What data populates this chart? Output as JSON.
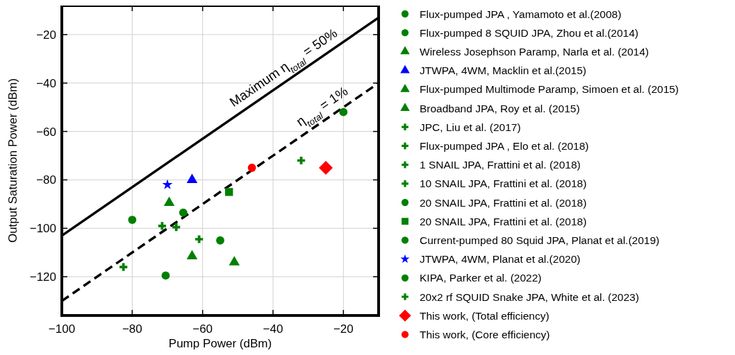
{
  "chart_data": {
    "type": "scatter",
    "xlabel": "Pump Power (dBm)",
    "ylabel": "Output Saturation Power (dBm)",
    "xlim": [
      -100,
      -10
    ],
    "ylim": [
      -136,
      -8
    ],
    "xticks": [
      -100,
      -80,
      -60,
      -40,
      -20
    ],
    "yticks": [
      -120,
      -100,
      -80,
      -60,
      -40,
      -20
    ],
    "grid": true,
    "legend": "right",
    "series": [
      {
        "type": "line",
        "x": [
          -100,
          -10
        ],
        "values": [
          -103,
          -13
        ],
        "color": "#000000",
        "line_style": "solid"
      },
      {
        "type": "line",
        "x": [
          -100,
          -10
        ],
        "values": [
          -130,
          -40
        ],
        "color": "#000000",
        "line_style": "dashed"
      },
      {
        "name": "Flux-pumped JPA , Yamamoto et al.(2008)",
        "x": [
          -70.5
        ],
        "values": [
          -119.5
        ],
        "color": "#008000",
        "marker": "circle"
      },
      {
        "name": "Flux-pumped 8 SQUID JPA, Zhou et al.(2014)",
        "x": [
          -55
        ],
        "values": [
          -105
        ],
        "color": "#008000",
        "marker": "circle"
      },
      {
        "name": "Wireless Josephson Paramp, Narla et al. (2014)",
        "x": [
          -63
        ],
        "values": [
          -111.5
        ],
        "color": "#008000",
        "marker": "triangle"
      },
      {
        "name": "JTWPA, 4WM, Macklin et al.(2015)",
        "x": [
          -63
        ],
        "values": [
          -80
        ],
        "color": "#0000ff",
        "marker": "triangle"
      },
      {
        "name": "Flux-pumped Multimode Paramp, Simoen et al. (2015)",
        "x": [
          -51
        ],
        "values": [
          -114
        ],
        "color": "#008000",
        "marker": "triangle"
      },
      {
        "name": "Broadband JPA, Roy et al. (2015)",
        "x": [
          -69.5
        ],
        "values": [
          -89.5
        ],
        "color": "#008000",
        "marker": "triangle"
      },
      {
        "name": "JPC, Liu et al. (2017)",
        "x": [
          -67.5
        ],
        "values": [
          -99.5
        ],
        "color": "#008000",
        "marker": "cross"
      },
      {
        "name": "Flux-pumped JPA , Elo et al. (2018)",
        "x": [
          -61
        ],
        "values": [
          -104.5
        ],
        "color": "#008000",
        "marker": "cross"
      },
      {
        "name": "1 SNAIL JPA, Frattini et al. (2018)",
        "x": [
          -82.5
        ],
        "values": [
          -116
        ],
        "color": "#008000",
        "marker": "cross"
      },
      {
        "name": "10 SNAIL JPA, Frattini et al. (2018)",
        "x": [
          -71.5
        ],
        "values": [
          -99
        ],
        "color": "#008000",
        "marker": "cross"
      },
      {
        "name": "20 SNAIL JPA, Frattini et al. (2018)",
        "x": [
          -65.5
        ],
        "values": [
          -93.5
        ],
        "color": "#008000",
        "marker": "circle"
      },
      {
        "name": "20 SNAIL JPA, Frattini et al. (2018)",
        "x": [
          -52.5
        ],
        "values": [
          -85
        ],
        "color": "#008000",
        "marker": "square"
      },
      {
        "name": "Current-pumped 80 Squid JPA, Planat et al.(2019)",
        "x": [
          -80
        ],
        "values": [
          -96.5
        ],
        "color": "#008000",
        "marker": "circle"
      },
      {
        "name": "JTWPA, 4WM, Planat et al.(2020)",
        "x": [
          -70
        ],
        "values": [
          -82
        ],
        "color": "#0000ff",
        "marker": "star"
      },
      {
        "name": "KIPA, Parker et al. (2022)",
        "x": [
          -20
        ],
        "values": [
          -52
        ],
        "color": "#008000",
        "marker": "circle"
      },
      {
        "name": "20x2 rf SQUID Snake JPA, White et al. (2023)",
        "x": [
          -32
        ],
        "values": [
          -72
        ],
        "color": "#008000",
        "marker": "cross"
      },
      {
        "name": "This work, (Total efficiency)",
        "x": [
          -25
        ],
        "values": [
          -75
        ],
        "color": "#ff0000",
        "marker": "diamond"
      },
      {
        "name": "This work, (Core efficiency)",
        "x": [
          -46
        ],
        "values": [
          -75
        ],
        "color": "#ff0000",
        "marker": "circle"
      }
    ],
    "annotations": [
      {
        "text": "Maximum η$_{total}$ = 50%",
        "x": -35,
        "y": -38
      },
      {
        "text": "η$_{total}$ = 1%",
        "x": -24,
        "y": -54
      }
    ]
  }
}
